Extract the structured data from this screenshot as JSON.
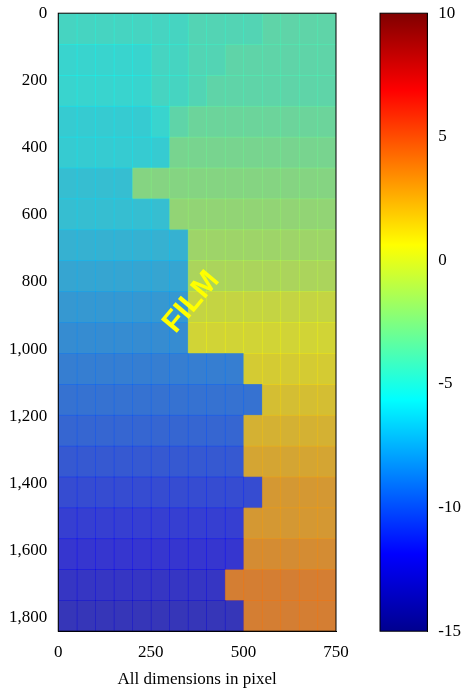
{
  "chart_data": {
    "type": "heatmap",
    "xlabel": "All dimensions in pixel",
    "xlim": [
      0,
      750
    ],
    "ylim": [
      0,
      1840
    ],
    "xticks": [
      0,
      250,
      500,
      750
    ],
    "yticks": [
      0,
      200,
      400,
      600,
      800,
      {
        "value": 1000,
        "label": "1,000"
      },
      {
        "value": 1200,
        "label": "1,200"
      },
      {
        "value": 1400,
        "label": "1,400"
      },
      {
        "value": 1600,
        "label": "1,600"
      },
      {
        "value": 1800,
        "label": "1,800"
      }
    ],
    "grid": false,
    "cell_x": [
      25,
      75,
      125,
      175,
      225,
      275,
      325,
      375,
      425,
      475,
      525,
      575,
      625,
      675,
      725
    ],
    "cell_y": [
      46,
      138,
      230,
      322,
      414,
      506,
      598,
      690,
      782,
      874,
      966,
      1058,
      1150,
      1242,
      1334,
      1426,
      1518,
      1610,
      1702,
      1794
    ],
    "cells": [
      [
        -5,
        -5,
        -5,
        -5,
        -5,
        -5,
        -5,
        -4.5,
        -4.5,
        -4.5,
        -4.5,
        -4,
        -4,
        -4,
        -4
      ],
      [
        -5.5,
        -5.5,
        -5.5,
        -5.5,
        -5.5,
        -5,
        -5,
        -4.5,
        -4.5,
        -4,
        -4,
        -4,
        -4,
        -4,
        -4
      ],
      [
        -5.5,
        -5.5,
        -5.5,
        -5.5,
        -5.5,
        -5,
        -5,
        -4.5,
        -4,
        -4,
        -4,
        -4,
        -4,
        -4,
        -4
      ],
      [
        -6,
        -6,
        -6,
        -6,
        -6,
        -5.5,
        -4,
        -3.5,
        -3.5,
        -3.5,
        -3.5,
        -3.5,
        -3.5,
        -3.5,
        -3.5
      ],
      [
        -6,
        -6,
        -6,
        -6,
        -6,
        -6,
        -3,
        -3,
        -3,
        -3,
        -3,
        -3,
        -3,
        -3,
        -3
      ],
      [
        -6.5,
        -6.5,
        -6.5,
        -6.5,
        -2.5,
        -2.5,
        -2.5,
        -2.5,
        -2.5,
        -2.5,
        -2.5,
        -2.5,
        -2.5,
        -2.5,
        -2.5
      ],
      [
        -6.5,
        -6.5,
        -6.5,
        -6.5,
        -6.5,
        -6.5,
        -2,
        -2,
        -2,
        -2,
        -2,
        -2,
        -2,
        -2,
        -2
      ],
      [
        -7,
        -7,
        -7,
        -7,
        -7,
        -7,
        -7,
        -1.5,
        -1.5,
        -1.5,
        -1.5,
        -1.5,
        -1.5,
        -1.5,
        -1.5
      ],
      [
        -7.5,
        -7.5,
        -7.5,
        -7.5,
        -7.5,
        -7.5,
        -7.5,
        -1,
        -1,
        -1,
        -1,
        -1,
        -1,
        -1,
        -1
      ],
      [
        -8,
        -8,
        -8,
        -8,
        -8,
        -8,
        -8,
        0,
        0,
        0,
        0,
        0,
        0,
        0,
        0
      ],
      [
        -8.5,
        -8.5,
        -8.5,
        -8.5,
        -8.5,
        -8.5,
        -8.5,
        0.5,
        0.5,
        0.5,
        0.5,
        0.5,
        0.5,
        0.5,
        0.5
      ],
      [
        -9,
        -9,
        -9,
        -9,
        -9,
        -9,
        -9,
        -9,
        -9,
        -9,
        1,
        1,
        1,
        1,
        1
      ],
      [
        -9.5,
        -9.5,
        -9.5,
        -9.5,
        -9.5,
        -9.5,
        -9.5,
        -9.5,
        -9.5,
        -9.5,
        -9.5,
        1.5,
        1.5,
        1.5,
        1.5
      ],
      [
        -10,
        -10,
        -10,
        -10,
        -10,
        -10,
        -10,
        -10,
        -10,
        -10,
        2,
        2,
        2,
        2,
        2
      ],
      [
        -10.5,
        -10.5,
        -10.5,
        -10.5,
        -10.5,
        -10.5,
        -10.5,
        -10.5,
        -10.5,
        -10.5,
        2.5,
        2.5,
        2.5,
        2.5,
        2.5
      ],
      [
        -11,
        -11,
        -11,
        -11,
        -11,
        -11,
        -11,
        -11,
        -11,
        -11,
        -11,
        3,
        3,
        3,
        3
      ],
      [
        -11.5,
        -11.5,
        -11.5,
        -11.5,
        -11.5,
        -11.5,
        -11.5,
        -11.5,
        -11.5,
        -11.5,
        3,
        3,
        3,
        3,
        3
      ],
      [
        -12,
        -12,
        -12,
        -12,
        -12,
        -12,
        -12,
        -12,
        -12,
        -12,
        3.5,
        3.5,
        3.5,
        3.5,
        3.5
      ],
      [
        -12.5,
        -12.5,
        -12.5,
        -12.5,
        -12.5,
        -12.5,
        -12.5,
        -12.5,
        -12.5,
        4,
        4,
        4,
        4,
        4,
        4
      ],
      [
        -13,
        -13,
        -13,
        -13,
        -13,
        -13,
        -13,
        -13,
        -13,
        -13,
        4,
        4,
        4,
        4,
        4
      ]
    ],
    "colorbar_range": [
      -15,
      10
    ],
    "colorbar_ticks": [
      -15,
      -10,
      -5,
      0,
      5,
      10
    ],
    "annotations": [
      {
        "text": "FILM",
        "x": 360,
        "y": 860,
        "color": "#ffff00"
      }
    ]
  }
}
